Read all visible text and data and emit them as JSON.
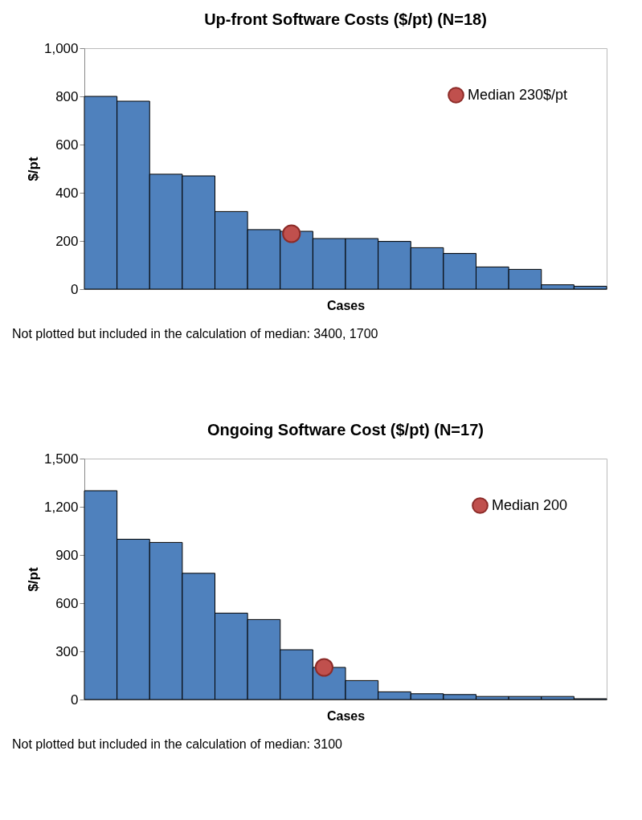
{
  "chart_data": [
    {
      "type": "bar",
      "title": "Up-front Software Costs ($/pt) (N=18)",
      "xlabel": "Cases",
      "ylabel": "$/pt",
      "categories": [
        null,
        null,
        null,
        null,
        null,
        null,
        null,
        null,
        null,
        null,
        null,
        null,
        null,
        null,
        null,
        null
      ],
      "series": [
        {
          "color": "#4f81bd",
          "values": [
            800,
            780,
            477,
            470,
            322,
            247,
            240,
            210,
            210,
            198,
            172,
            148,
            92,
            82,
            18,
            12
          ]
        },
        {
          "type": "scatter",
          "name": "Median 230$/pt",
          "color": "#c0504d",
          "values": [
            null,
            null,
            null,
            null,
            null,
            null,
            230,
            null,
            null,
            null,
            null,
            null,
            null,
            null,
            null,
            null
          ]
        }
      ],
      "ylim": [
        0,
        1000
      ],
      "yticks": [
        0,
        200,
        400,
        600,
        800,
        {
          "value": 1000,
          "label": "1,000"
        }
      ],
      "grid": false,
      "legend": "top right",
      "marker": "circle",
      "tick_labels": "y",
      "annotations": [
        "Not plotted but included in the calculation of median: 3400, 1700"
      ]
    },
    {
      "type": "bar",
      "title": "Ongoing Software Cost ($/pt) (N=17)",
      "xlabel": "Cases",
      "ylabel": "$/pt",
      "categories": [
        null,
        null,
        null,
        null,
        null,
        null,
        null,
        null,
        null,
        null,
        null,
        null,
        null,
        null,
        null,
        null
      ],
      "series": [
        {
          "color": "#4f81bd",
          "values": [
            1300,
            998,
            978,
            786,
            538,
            498,
            310,
            200,
            118,
            48,
            36,
            31,
            19,
            19,
            19,
            5
          ]
        },
        {
          "type": "scatter",
          "name": "Median 200",
          "color": "#c0504d",
          "values": [
            null,
            null,
            null,
            null,
            null,
            null,
            null,
            200,
            null,
            null,
            null,
            null,
            null,
            null,
            null,
            null
          ]
        }
      ],
      "ylim": [
        0,
        1500
      ],
      "yticks": [
        0,
        300,
        600,
        900,
        {
          "value": 1200,
          "label": "1,200"
        },
        {
          "value": 1500,
          "label": "1,500"
        }
      ],
      "grid": false,
      "legend": "top right",
      "marker": "circle",
      "tick_labels": "y",
      "annotations": [
        "Not plotted but included in the calculation of median: 3100"
      ]
    }
  ]
}
